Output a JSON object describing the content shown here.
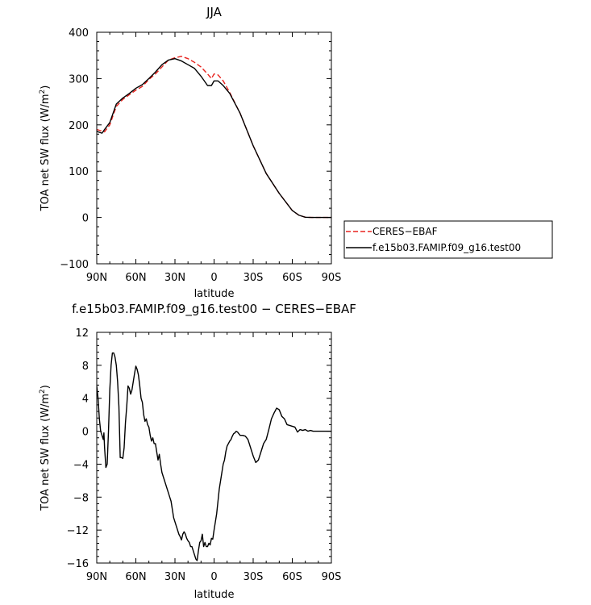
{
  "chart_data": [
    {
      "type": "line",
      "title": "JJA",
      "xlabel": "latitude",
      "ylabel": "TOA net SW flux (W/m²)",
      "ylabel_main": "TOA net SW flux (W/m",
      "ylabel_sup": "2",
      "ylabel_close": ")",
      "xlim": [
        90,
        -90
      ],
      "ylim": [
        -100,
        400
      ],
      "xticks": [
        90,
        60,
        30,
        0,
        -30,
        -60,
        -90
      ],
      "xtick_labels": [
        "90N",
        "60N",
        "30N",
        "0",
        "30S",
        "60S",
        "90S"
      ],
      "yticks": [
        -100,
        0,
        100,
        200,
        300,
        400
      ],
      "ytick_labels": [
        "−100",
        "0",
        "100",
        "200",
        "300",
        "400"
      ],
      "legend_position": "right",
      "series": [
        {
          "name": "CERES−EBAF",
          "color": "#e8231e",
          "dash": "dashed",
          "x": [
            90,
            84,
            80,
            75,
            70,
            65,
            60,
            55,
            50,
            45,
            40,
            35,
            30,
            25,
            20,
            15,
            10,
            5,
            2,
            0,
            -3,
            -7,
            -12,
            -20,
            -30,
            -40,
            -50,
            -60,
            -65,
            -70,
            -75,
            -80,
            -85,
            -90
          ],
          "y": [
            190,
            185,
            200,
            240,
            255,
            265,
            275,
            283,
            298,
            310,
            325,
            340,
            345,
            348,
            343,
            335,
            325,
            310,
            300,
            310,
            308,
            295,
            270,
            225,
            155,
            95,
            52,
            15,
            5,
            0.5,
            0,
            0,
            0,
            0
          ]
        },
        {
          "name": "f.e15b03.FAMIP.f09_g16.test00",
          "color": "#000000",
          "dash": "solid",
          "x": [
            90,
            86,
            84,
            80,
            75,
            70,
            65,
            60,
            55,
            50,
            45,
            40,
            35,
            30,
            25,
            20,
            15,
            10,
            5,
            2,
            0,
            -3,
            -7,
            -12,
            -20,
            -30,
            -40,
            -50,
            -60,
            -65,
            -70,
            -75,
            -80,
            -85,
            -90
          ],
          "y": [
            186,
            182,
            190,
            205,
            245,
            258,
            268,
            279,
            287,
            300,
            314,
            330,
            340,
            343,
            338,
            330,
            322,
            305,
            285,
            285,
            295,
            295,
            285,
            268,
            225,
            155,
            95,
            52,
            15,
            5,
            0.5,
            0,
            0,
            0,
            0
          ]
        }
      ]
    },
    {
      "type": "line",
      "title": "f.e15b03.FAMIP.f09_g16.test00 − CERES−EBAF",
      "xlabel": "latitude",
      "ylabel": "TOA net SW flux (W/m²)",
      "ylabel_main": "TOA net SW flux (W/m",
      "ylabel_sup": "2",
      "ylabel_close": ")",
      "xlim": [
        90,
        -90
      ],
      "ylim": [
        -16,
        12
      ],
      "xticks": [
        90,
        60,
        30,
        0,
        -30,
        -60,
        -90
      ],
      "xtick_labels": [
        "90N",
        "60N",
        "30N",
        "0",
        "30S",
        "60S",
        "90S"
      ],
      "yticks": [
        -16,
        -12,
        -8,
        -4,
        0,
        4,
        8,
        12
      ],
      "ytick_labels": [
        "−16",
        "−12",
        "−8",
        "−4",
        "0",
        "4",
        "8",
        "12"
      ],
      "series": [
        {
          "color": "#000000",
          "dash": "solid",
          "x": [
            90,
            89,
            88,
            87,
            86,
            85,
            84.5,
            84,
            83,
            82,
            81,
            80,
            79,
            78,
            77,
            76,
            75,
            74,
            73,
            72,
            71,
            70,
            69,
            68,
            67,
            66,
            65,
            64,
            63,
            62,
            61,
            60,
            59,
            58,
            57,
            56,
            55,
            54,
            53,
            52,
            51,
            50,
            49,
            48,
            47,
            46,
            45,
            44,
            43,
            42,
            41,
            40,
            39,
            38,
            37,
            36,
            35,
            34,
            33,
            32,
            31,
            30,
            29,
            28,
            27,
            26,
            25,
            24,
            23,
            22,
            21,
            20,
            19,
            18,
            17,
            16,
            15,
            14,
            13,
            12,
            11,
            10,
            9,
            8,
            7,
            6,
            5,
            4,
            3,
            2,
            1,
            0,
            -1,
            -2,
            -3,
            -4,
            -5,
            -6,
            -7,
            -8,
            -9,
            -10,
            -11,
            -12,
            -13,
            -14,
            -15,
            -16,
            -17,
            -18,
            -20,
            -22,
            -24,
            -26,
            -28,
            -30,
            -32,
            -34,
            -36,
            -38,
            -40,
            -42,
            -44,
            -46,
            -48,
            -50,
            -52,
            -54,
            -56,
            -58,
            -60,
            -62,
            -64,
            -66,
            -68,
            -70,
            -72,
            -74,
            -76,
            -78,
            -80,
            -82,
            -84,
            -86,
            -88,
            -90
          ],
          "y": [
            5.5,
            4,
            1.5,
            0,
            -0.5,
            -1,
            -0.2,
            -2,
            -4.4,
            -4,
            0,
            5,
            8,
            9.5,
            9.5,
            9,
            8,
            6,
            3,
            -3.2,
            -3.2,
            -3.3,
            -2,
            1,
            3,
            5.5,
            5.2,
            4.5,
            5,
            6,
            7,
            7.9,
            7.5,
            6.8,
            5.5,
            4,
            3.5,
            2,
            1.2,
            1.5,
            0.8,
            0.5,
            -0.5,
            -1.2,
            -0.8,
            -1.5,
            -1.5,
            -2.5,
            -3.5,
            -2.8,
            -4,
            -5,
            -5.5,
            -6,
            -6.5,
            -7,
            -7.5,
            -8,
            -8.5,
            -9.5,
            -10.5,
            -11,
            -11.5,
            -12,
            -12.5,
            -12.8,
            -13.2,
            -12.5,
            -12.2,
            -12.5,
            -13,
            -13.3,
            -13.5,
            -14,
            -14,
            -14.5,
            -15,
            -15.5,
            -15.7,
            -14.5,
            -13.5,
            -13.3,
            -12.5,
            -14,
            -13.5,
            -14,
            -14,
            -13.6,
            -13.8,
            -13,
            -13.1,
            -12,
            -11,
            -10,
            -8.5,
            -7,
            -6,
            -5,
            -4,
            -3.5,
            -2.5,
            -1.8,
            -1.5,
            -1.2,
            -1,
            -0.6,
            -0.3,
            -0.2,
            0,
            -0.1,
            -0.5,
            -0.5,
            -0.6,
            -1,
            -2,
            -3,
            -3.8,
            -3.5,
            -2.5,
            -1.5,
            -1,
            0.2,
            1.5,
            2.2,
            2.8,
            2.6,
            1.8,
            1.5,
            0.8,
            0.7,
            0.6,
            0.5,
            -0.1,
            0.2,
            0.1,
            0.2,
            0,
            0.1,
            0,
            0,
            0,
            0,
            0,
            0,
            0,
            0
          ]
        }
      ]
    }
  ]
}
